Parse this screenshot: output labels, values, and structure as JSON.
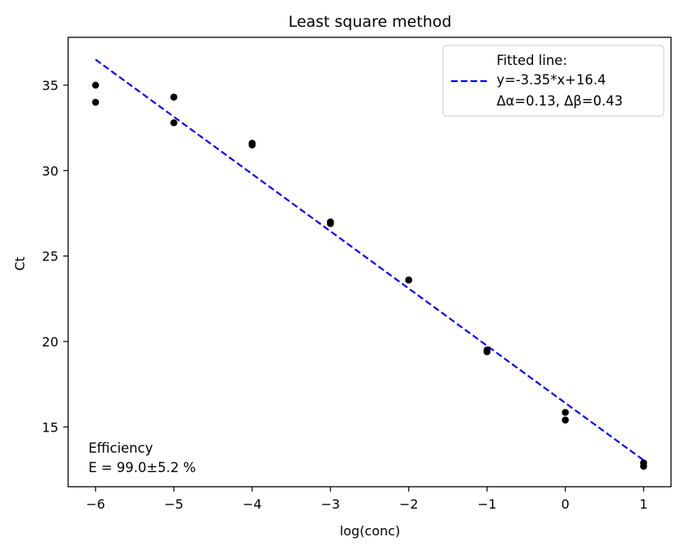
{
  "chart_data": {
    "type": "scatter",
    "title": "Least square method",
    "xlabel": "log(conc)",
    "ylabel": "Ct",
    "xlim": [
      -6.35,
      1.35
    ],
    "ylim": [
      11.5,
      37.8
    ],
    "xticks": [
      -6,
      -5,
      -4,
      -3,
      -2,
      -1,
      0,
      1
    ],
    "xtick_labels": [
      "−6",
      "−5",
      "−4",
      "−3",
      "−2",
      "−1",
      "0",
      "1"
    ],
    "yticks": [
      15,
      20,
      25,
      30,
      35
    ],
    "ytick_labels": [
      "15",
      "20",
      "25",
      "30",
      "35"
    ],
    "grid": false,
    "legend_position": "top-right",
    "series": [
      {
        "type": "scatter",
        "color": "#000000",
        "points": [
          [
            -6,
            35.0
          ],
          [
            -6,
            34.0
          ],
          [
            -5,
            34.3
          ],
          [
            -5,
            32.8
          ],
          [
            -4,
            31.6
          ],
          [
            -4,
            31.5
          ],
          [
            -3,
            27.0
          ],
          [
            -3,
            26.9
          ],
          [
            -2,
            23.6
          ],
          [
            -2,
            23.6
          ],
          [
            -1,
            19.5
          ],
          [
            -1,
            19.4
          ],
          [
            0,
            15.85
          ],
          [
            0,
            15.4
          ],
          [
            1,
            12.9
          ],
          [
            1,
            12.7
          ]
        ]
      },
      {
        "type": "line",
        "style": "dashed",
        "color": "#0000ff",
        "slope": -3.35,
        "intercept": 16.4,
        "x_range": [
          -6,
          1
        ],
        "legend_lines": [
          "Fitted line:",
          "y=-3.35*x+16.4",
          "Δα=0.13, Δβ=0.43"
        ]
      }
    ],
    "annotation": {
      "position": "bottom-left",
      "lines": [
        "Efficiency",
        "E = 99.0±5.2 %"
      ]
    }
  }
}
